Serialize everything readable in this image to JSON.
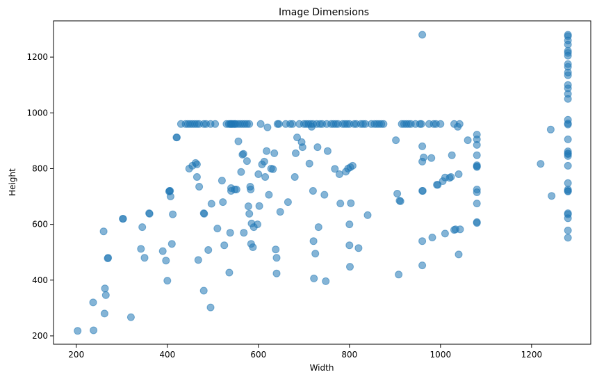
{
  "chart_data": {
    "type": "scatter",
    "title": "Image Dimensions",
    "xlabel": "Width",
    "ylabel": "Height",
    "xlim": [
      150,
      1330
    ],
    "ylim": [
      170,
      1330
    ],
    "xticks": [
      200,
      400,
      600,
      800,
      1000,
      1200
    ],
    "yticks": [
      200,
      400,
      600,
      800,
      1000,
      1200
    ],
    "grid": false,
    "color": "#1f77b4",
    "alpha": 0.55,
    "points": [
      [
        203,
        218
      ],
      [
        238,
        220
      ],
      [
        237,
        320
      ],
      [
        263,
        370
      ],
      [
        265,
        346
      ],
      [
        262,
        280
      ],
      [
        260,
        575
      ],
      [
        270,
        480
      ],
      [
        269,
        478
      ],
      [
        303,
        620
      ],
      [
        302,
        620
      ],
      [
        320,
        267
      ],
      [
        342,
        512
      ],
      [
        345,
        590
      ],
      [
        350,
        480
      ],
      [
        360,
        640
      ],
      [
        361,
        638
      ],
      [
        390,
        504
      ],
      [
        397,
        470
      ],
      [
        400,
        398
      ],
      [
        405,
        720
      ],
      [
        406,
        720
      ],
      [
        404,
        718
      ],
      [
        407,
        700
      ],
      [
        410,
        530
      ],
      [
        412,
        636
      ],
      [
        420,
        912
      ],
      [
        421,
        912
      ],
      [
        430,
        960
      ],
      [
        440,
        960
      ],
      [
        445,
        960
      ],
      [
        450,
        960
      ],
      [
        455,
        960
      ],
      [
        460,
        960
      ],
      [
        465,
        960
      ],
      [
        470,
        960
      ],
      [
        480,
        960
      ],
      [
        485,
        960
      ],
      [
        495,
        960
      ],
      [
        505,
        960
      ],
      [
        448,
        800
      ],
      [
        455,
        810
      ],
      [
        462,
        820
      ],
      [
        465,
        815
      ],
      [
        465,
        770
      ],
      [
        470,
        735
      ],
      [
        468,
        472
      ],
      [
        480,
        640
      ],
      [
        481,
        638
      ],
      [
        480,
        362
      ],
      [
        490,
        508
      ],
      [
        495,
        302
      ],
      [
        497,
        674
      ],
      [
        510,
        585
      ],
      [
        520,
        757
      ],
      [
        522,
        680
      ],
      [
        525,
        525
      ],
      [
        530,
        960
      ],
      [
        535,
        960
      ],
      [
        538,
        960
      ],
      [
        540,
        960
      ],
      [
        542,
        960
      ],
      [
        545,
        960
      ],
      [
        548,
        960
      ],
      [
        550,
        960
      ],
      [
        555,
        960
      ],
      [
        560,
        960
      ],
      [
        565,
        960
      ],
      [
        570,
        960
      ],
      [
        575,
        960
      ],
      [
        580,
        960
      ],
      [
        536,
        427
      ],
      [
        538,
        570
      ],
      [
        540,
        730
      ],
      [
        540,
        720
      ],
      [
        548,
        725
      ],
      [
        552,
        725
      ],
      [
        556,
        898
      ],
      [
        562,
        788
      ],
      [
        565,
        850
      ],
      [
        567,
        853
      ],
      [
        568,
        570
      ],
      [
        575,
        827
      ],
      [
        578,
        665
      ],
      [
        580,
        638
      ],
      [
        582,
        735
      ],
      [
        583,
        725
      ],
      [
        584,
        530
      ],
      [
        585,
        603
      ],
      [
        588,
        518
      ],
      [
        590,
        590
      ],
      [
        598,
        600
      ],
      [
        600,
        780
      ],
      [
        602,
        666
      ],
      [
        605,
        960
      ],
      [
        608,
        815
      ],
      [
        613,
        825
      ],
      [
        615,
        770
      ],
      [
        618,
        863
      ],
      [
        620,
        948
      ],
      [
        623,
        706
      ],
      [
        628,
        800
      ],
      [
        632,
        798
      ],
      [
        635,
        855
      ],
      [
        638,
        510
      ],
      [
        640,
        480
      ],
      [
        640,
        424
      ],
      [
        642,
        960
      ],
      [
        645,
        960
      ],
      [
        648,
        645
      ],
      [
        660,
        960
      ],
      [
        665,
        680
      ],
      [
        670,
        960
      ],
      [
        675,
        960
      ],
      [
        680,
        770
      ],
      [
        682,
        855
      ],
      [
        685,
        912
      ],
      [
        690,
        960
      ],
      [
        695,
        895
      ],
      [
        697,
        877
      ],
      [
        700,
        960
      ],
      [
        705,
        960
      ],
      [
        710,
        960
      ],
      [
        712,
        818
      ],
      [
        715,
        960
      ],
      [
        717,
        950
      ],
      [
        720,
        960
      ],
      [
        720,
        720
      ],
      [
        721,
        540
      ],
      [
        722,
        406
      ],
      [
        725,
        495
      ],
      [
        728,
        960
      ],
      [
        730,
        877
      ],
      [
        732,
        590
      ],
      [
        735,
        960
      ],
      [
        740,
        960
      ],
      [
        745,
        706
      ],
      [
        748,
        396
      ],
      [
        750,
        960
      ],
      [
        752,
        863
      ],
      [
        760,
        960
      ],
      [
        765,
        960
      ],
      [
        768,
        799
      ],
      [
        770,
        960
      ],
      [
        775,
        960
      ],
      [
        778,
        780
      ],
      [
        780,
        675
      ],
      [
        785,
        960
      ],
      [
        790,
        960
      ],
      [
        792,
        789
      ],
      [
        795,
        960
      ],
      [
        797,
        800
      ],
      [
        800,
        960
      ],
      [
        800,
        600
      ],
      [
        800,
        525
      ],
      [
        801,
        448
      ],
      [
        802,
        805
      ],
      [
        803,
        676
      ],
      [
        807,
        810
      ],
      [
        810,
        960
      ],
      [
        815,
        960
      ],
      [
        820,
        515
      ],
      [
        825,
        960
      ],
      [
        830,
        960
      ],
      [
        835,
        960
      ],
      [
        840,
        633
      ],
      [
        848,
        960
      ],
      [
        855,
        960
      ],
      [
        860,
        960
      ],
      [
        865,
        960
      ],
      [
        870,
        960
      ],
      [
        875,
        960
      ],
      [
        902,
        902
      ],
      [
        905,
        710
      ],
      [
        908,
        420
      ],
      [
        910,
        685
      ],
      [
        912,
        683
      ],
      [
        915,
        960
      ],
      [
        920,
        960
      ],
      [
        925,
        960
      ],
      [
        930,
        960
      ],
      [
        935,
        960
      ],
      [
        945,
        960
      ],
      [
        955,
        960
      ],
      [
        958,
        960
      ],
      [
        960,
        1280
      ],
      [
        960,
        880
      ],
      [
        960,
        825
      ],
      [
        960,
        720
      ],
      [
        961,
        720
      ],
      [
        960,
        540
      ],
      [
        960,
        453
      ],
      [
        963,
        840
      ],
      [
        975,
        960
      ],
      [
        980,
        838
      ],
      [
        982,
        553
      ],
      [
        985,
        960
      ],
      [
        990,
        960
      ],
      [
        992,
        742
      ],
      [
        994,
        742
      ],
      [
        1000,
        960
      ],
      [
        1005,
        755
      ],
      [
        1010,
        567
      ],
      [
        1010,
        768
      ],
      [
        1020,
        767
      ],
      [
        1023,
        770
      ],
      [
        1025,
        848
      ],
      [
        1030,
        960
      ],
      [
        1030,
        580
      ],
      [
        1033,
        582
      ],
      [
        1038,
        950
      ],
      [
        1040,
        780
      ],
      [
        1040,
        492
      ],
      [
        1042,
        960
      ],
      [
        1043,
        582
      ],
      [
        1060,
        902
      ],
      [
        1080,
        922
      ],
      [
        1080,
        905
      ],
      [
        1080,
        885
      ],
      [
        1080,
        848
      ],
      [
        1080,
        812
      ],
      [
        1080,
        808
      ],
      [
        1080,
        806
      ],
      [
        1080,
        725
      ],
      [
        1080,
        715
      ],
      [
        1080,
        675
      ],
      [
        1080,
        608
      ],
      [
        1080,
        605
      ],
      [
        1220,
        817
      ],
      [
        1242,
        940
      ],
      [
        1244,
        702
      ],
      [
        1280,
        1280
      ],
      [
        1280,
        1275
      ],
      [
        1280,
        1260
      ],
      [
        1280,
        1245
      ],
      [
        1280,
        1222
      ],
      [
        1280,
        1215
      ],
      [
        1280,
        1205
      ],
      [
        1280,
        1175
      ],
      [
        1280,
        1165
      ],
      [
        1280,
        1145
      ],
      [
        1280,
        1135
      ],
      [
        1280,
        1100
      ],
      [
        1280,
        1088
      ],
      [
        1280,
        1068
      ],
      [
        1280,
        1050
      ],
      [
        1280,
        975
      ],
      [
        1280,
        962
      ],
      [
        1280,
        958
      ],
      [
        1280,
        905
      ],
      [
        1280,
        862
      ],
      [
        1280,
        855
      ],
      [
        1280,
        852
      ],
      [
        1280,
        845
      ],
      [
        1280,
        810
      ],
      [
        1280,
        748
      ],
      [
        1280,
        725
      ],
      [
        1280,
        720
      ],
      [
        1280,
        718
      ],
      [
        1280,
        640
      ],
      [
        1280,
        636
      ],
      [
        1280,
        622
      ],
      [
        1280,
        578
      ],
      [
        1280,
        552
      ]
    ]
  }
}
